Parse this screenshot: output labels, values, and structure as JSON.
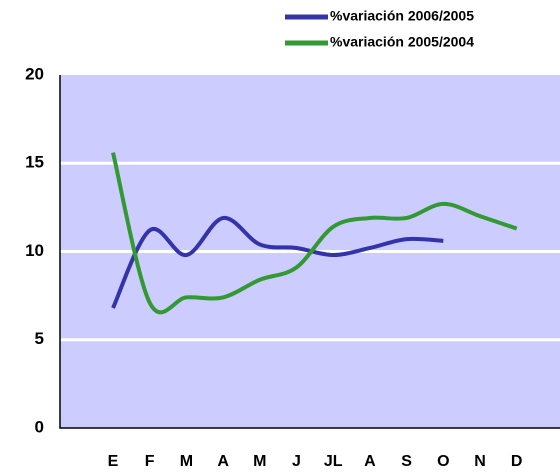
{
  "chart_data": {
    "type": "line",
    "categories": [
      "E",
      "F",
      "M",
      "A",
      "M",
      "J",
      "JL",
      "A",
      "S",
      "O",
      "N",
      "D"
    ],
    "series": [
      {
        "name": "%variación 2006/2005",
        "color": "#3333aa",
        "values": [
          6.8,
          11.2,
          9.8,
          11.9,
          10.4,
          10.2,
          9.8,
          10.2,
          10.7,
          10.6,
          null,
          null
        ]
      },
      {
        "name": "%variación 2005/2004",
        "color": "#339933",
        "values": [
          15.6,
          7.1,
          7.4,
          7.4,
          8.4,
          9.1,
          11.4,
          11.9,
          11.9,
          12.7,
          12.0,
          11.3
        ]
      }
    ],
    "ylim": [
      0,
      20
    ],
    "yticks": [
      0,
      5,
      10,
      15,
      20
    ],
    "grid": true,
    "background": "#ccccff",
    "legend": "top-right"
  }
}
